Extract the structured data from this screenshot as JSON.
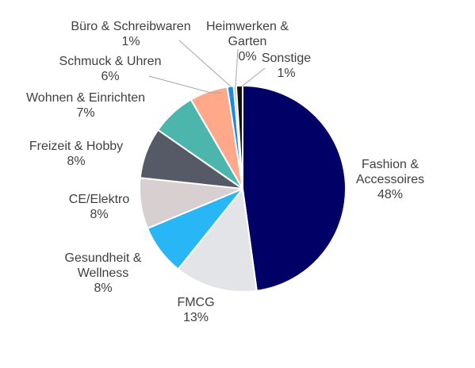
{
  "chart_data": {
    "type": "pie",
    "title": "",
    "slices": [
      {
        "label": "Fashion & Accessoires",
        "label_lines": [
          "Fashion &",
          "Accessoires"
        ],
        "value": 48,
        "value_label": "48%",
        "color": "#000066"
      },
      {
        "label": "FMCG",
        "label_lines": [
          "FMCG"
        ],
        "value": 13,
        "value_label": "13%",
        "color": "#E2E4E8"
      },
      {
        "label": "Gesundheit & Wellness",
        "label_lines": [
          "Gesundheit &",
          "Wellness"
        ],
        "value": 8,
        "value_label": "8%",
        "color": "#29B6F6"
      },
      {
        "label": "CE/Elektro",
        "label_lines": [
          "CE/Elektro"
        ],
        "value": 8,
        "value_label": "8%",
        "color": "#D8CFD0"
      },
      {
        "label": "Freizeit & Hobby",
        "label_lines": [
          "Freizeit & Hobby"
        ],
        "value": 8,
        "value_label": "8%",
        "color": "#555A66"
      },
      {
        "label": "Wohnen & Einrichten",
        "label_lines": [
          "Wohnen & Einrichten"
        ],
        "value": 7,
        "value_label": "7%",
        "color": "#4DB6AC"
      },
      {
        "label": "Schmuck & Uhren",
        "label_lines": [
          "Schmuck & Uhren"
        ],
        "value": 6,
        "value_label": "6%",
        "color": "#FFA88A"
      },
      {
        "label": "Büro & Schreibwaren",
        "label_lines": [
          "Büro & Schreibwaren"
        ],
        "value": 1,
        "value_label": "1%",
        "color": "#1E88E5"
      },
      {
        "label": "Heimwerken & Garten",
        "label_lines": [
          "Heimwerken &",
          "Garten"
        ],
        "value": 0.4,
        "value_label": "0%",
        "color": "#9FA5AE"
      },
      {
        "label": "Sonstige",
        "label_lines": [
          "Sonstige"
        ],
        "value": 1,
        "value_label": "1%",
        "color": "#111111"
      }
    ],
    "start_angle_deg": 0,
    "direction": "clockwise",
    "legend": "none"
  }
}
